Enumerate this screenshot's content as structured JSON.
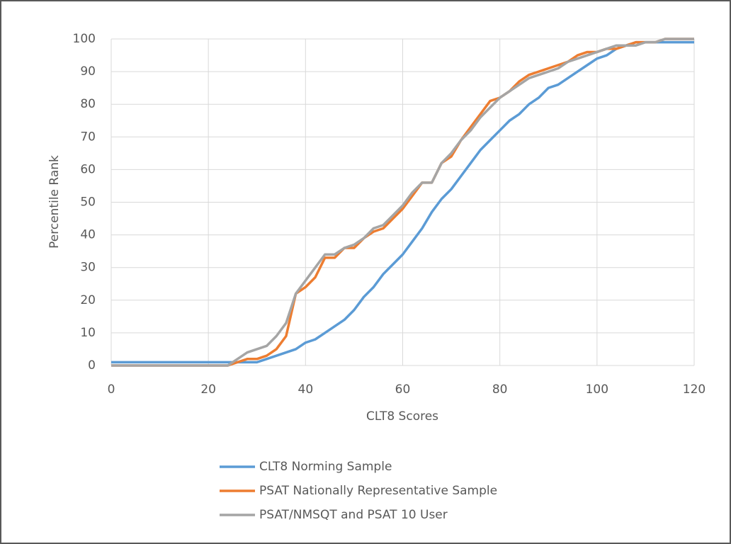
{
  "chart_data": {
    "type": "line",
    "x_label": "CLT8 Scores",
    "y_label": "Percentile Rank",
    "x": [
      0,
      2,
      4,
      6,
      8,
      10,
      12,
      14,
      16,
      18,
      20,
      22,
      24,
      26,
      28,
      30,
      32,
      34,
      36,
      38,
      40,
      42,
      44,
      46,
      48,
      50,
      52,
      54,
      56,
      58,
      60,
      62,
      64,
      66,
      68,
      70,
      72,
      74,
      76,
      78,
      80,
      82,
      84,
      86,
      88,
      90,
      92,
      94,
      96,
      98,
      100,
      102,
      104,
      106,
      108,
      110,
      112,
      114,
      116,
      118,
      120
    ],
    "series": [
      {
        "name": "CLT8 Norming Sample",
        "color": "#5b9bd5",
        "values": [
          1,
          1,
          1,
          1,
          1,
          1,
          1,
          1,
          1,
          1,
          1,
          1,
          1,
          1,
          1,
          1,
          2,
          3,
          4,
          5,
          7,
          8,
          10,
          12,
          14,
          17,
          21,
          24,
          28,
          31,
          34,
          38,
          42,
          47,
          51,
          54,
          58,
          62,
          66,
          69,
          72,
          75,
          77,
          80,
          82,
          85,
          86,
          88,
          90,
          92,
          94,
          95,
          97,
          98,
          99,
          99,
          99,
          99,
          99,
          99,
          99
        ]
      },
      {
        "name": "PSAT Nationally Representative Sample",
        "color": "#ed7d31",
        "values": [
          0,
          0,
          0,
          0,
          0,
          0,
          0,
          0,
          0,
          0,
          0,
          0,
          0,
          1,
          2,
          2,
          3,
          5,
          9,
          22,
          24,
          27,
          33,
          33,
          36,
          36,
          39,
          41,
          42,
          45,
          48,
          52,
          56,
          56,
          62,
          64,
          69,
          73,
          77,
          81,
          82,
          84,
          87,
          89,
          90,
          91,
          92,
          93,
          95,
          96,
          96,
          97,
          97,
          98,
          99,
          99,
          99,
          100,
          100,
          100,
          100
        ]
      },
      {
        "name": "PSAT/NMSQT and PSAT 10 User",
        "color": "#a5a5a5",
        "values": [
          0,
          0,
          0,
          0,
          0,
          0,
          0,
          0,
          0,
          0,
          0,
          0,
          0,
          2,
          4,
          5,
          6,
          9,
          13,
          22,
          26,
          30,
          34,
          34,
          36,
          37,
          39,
          42,
          43,
          46,
          49,
          53,
          56,
          56,
          62,
          65,
          69,
          72,
          76,
          79,
          82,
          84,
          86,
          88,
          89,
          90,
          91,
          93,
          94,
          95,
          96,
          97,
          98,
          98,
          98,
          99,
          99,
          100,
          100,
          100,
          100
        ]
      }
    ],
    "xlim": [
      0,
      120
    ],
    "xticks": [
      0,
      20,
      40,
      60,
      80,
      100,
      120
    ],
    "ylim": [
      0,
      100
    ],
    "yticks": [
      0,
      10,
      20,
      30,
      40,
      50,
      60,
      70,
      80,
      90,
      100
    ],
    "grid": true,
    "legend": "bottom"
  }
}
